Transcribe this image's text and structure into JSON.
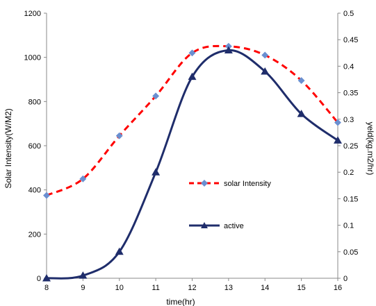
{
  "chart_data": {
    "type": "line",
    "x": [
      8,
      9,
      10,
      11,
      12,
      13,
      14,
      15,
      16
    ],
    "xlabel": "time(hr)",
    "ylabel_left": "Solar Intensity(W/M2)",
    "ylabel_right": "yeld(kg.m2/hr)",
    "xlim": [
      8,
      16
    ],
    "ylim_left": [
      0,
      1200
    ],
    "ylim_right": [
      0,
      0.5
    ],
    "x_ticks": [
      "8",
      "9",
      "10",
      "11",
      "12",
      "13",
      "14",
      "15",
      "16"
    ],
    "y_left_ticks": [
      "0",
      "200",
      "400",
      "600",
      "800",
      "1000",
      "1200"
    ],
    "y_right_ticks": [
      "0",
      "0.05",
      "0.1",
      "0.15",
      "0.2",
      "0.25",
      "0.3",
      "0.35",
      "0.4",
      "0.45",
      "0.5"
    ],
    "grid": false,
    "series": [
      {
        "name": "solar Intensity",
        "axis": "left",
        "color": "#ff0000",
        "marker_color": "#6a8fd0",
        "style": "dashed",
        "values": [
          375,
          450,
          645,
          825,
          1020,
          1050,
          1010,
          895,
          705
        ]
      },
      {
        "name": "active",
        "axis": "right",
        "color": "#1f2d6b",
        "style": "solid",
        "values": [
          0,
          0.005,
          0.05,
          0.2,
          0.38,
          0.43,
          0.39,
          0.31,
          0.26
        ]
      }
    ]
  }
}
